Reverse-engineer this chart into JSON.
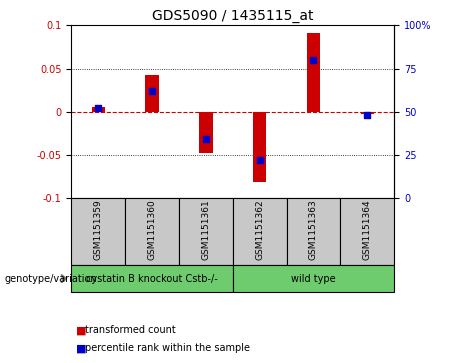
{
  "title": "GDS5090 / 1435115_at",
  "samples": [
    "GSM1151359",
    "GSM1151360",
    "GSM1151361",
    "GSM1151362",
    "GSM1151363",
    "GSM1151364"
  ],
  "transformed_count": [
    0.005,
    0.043,
    -0.048,
    -0.082,
    0.091,
    -0.003
  ],
  "percentile_rank": [
    52,
    62,
    34,
    22,
    80,
    48
  ],
  "ylim_left": [
    -0.1,
    0.1
  ],
  "ylim_right": [
    0,
    100
  ],
  "yticks_left": [
    -0.1,
    -0.05,
    0.0,
    0.05,
    0.1
  ],
  "yticks_right": [
    0,
    25,
    50,
    75,
    100
  ],
  "group_info": [
    {
      "indices": [
        0,
        1,
        2
      ],
      "label": "cystatin B knockout Cstb-/-",
      "color": "#6ECC6E"
    },
    {
      "indices": [
        3,
        4,
        5
      ],
      "label": "wild type",
      "color": "#6ECC6E"
    }
  ],
  "group_label_prefix": "genotype/variation",
  "bar_color": "#CC0000",
  "dot_color": "#0000CC",
  "bar_width": 0.25,
  "dot_size": 18,
  "plot_bg_color": "#ffffff",
  "zero_line_color": "#CC0000",
  "left_axis_color": "#CC0000",
  "right_axis_color": "#0000CC",
  "tick_fontsize": 7,
  "title_fontsize": 10,
  "sample_fontsize": 6.5,
  "group_fontsize": 7,
  "legend_items": [
    "transformed count",
    "percentile rank within the sample"
  ],
  "sample_bg_color": "#C8C8C8"
}
